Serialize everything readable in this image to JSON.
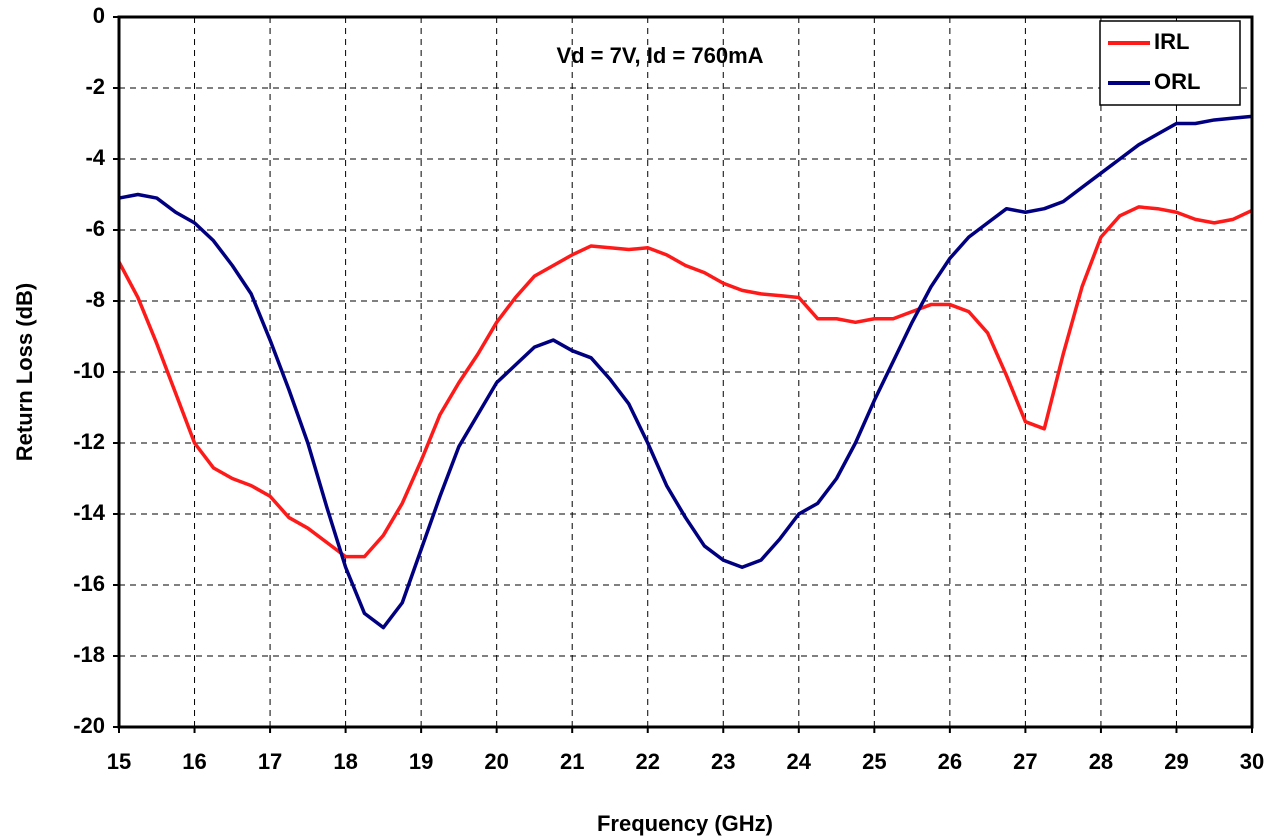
{
  "chart_data": {
    "type": "line",
    "annotation": "Vd = 7V, Id = 760mA",
    "xlabel": "Frequency (GHz)",
    "ylabel": "Return Loss (dB)",
    "x": [
      15,
      15.25,
      15.5,
      15.75,
      16,
      16.25,
      16.5,
      16.75,
      17,
      17.25,
      17.5,
      17.75,
      18,
      18.25,
      18.5,
      18.75,
      19,
      19.25,
      19.5,
      19.75,
      20,
      20.25,
      20.5,
      20.75,
      21,
      21.25,
      21.5,
      21.75,
      22,
      22.25,
      22.5,
      22.75,
      23,
      23.25,
      23.5,
      23.75,
      24,
      24.25,
      24.5,
      24.75,
      25,
      25.25,
      25.5,
      25.75,
      26,
      26.25,
      26.5,
      26.75,
      27,
      27.25,
      27.5,
      27.75,
      28,
      28.25,
      28.5,
      28.75,
      29,
      29.25,
      29.5,
      29.75,
      30
    ],
    "series": [
      {
        "name": "IRL",
        "color": "#ff1a1a",
        "values": [
          -6.9,
          -7.9,
          -9.2,
          -10.6,
          -12.0,
          -12.7,
          -13.0,
          -13.2,
          -13.5,
          -14.1,
          -14.4,
          -14.8,
          -15.2,
          -15.2,
          -14.6,
          -13.7,
          -12.5,
          -11.2,
          -10.3,
          -9.5,
          -8.6,
          -7.9,
          -7.3,
          -7.0,
          -6.7,
          -6.45,
          -6.5,
          -6.55,
          -6.5,
          -6.7,
          -7.0,
          -7.2,
          -7.5,
          -7.7,
          -7.8,
          -7.85,
          -7.9,
          -8.5,
          -8.5,
          -8.6,
          -8.5,
          -8.5,
          -8.3,
          -8.1,
          -8.1,
          -8.3,
          -8.9,
          -10.1,
          -11.4,
          -11.6,
          -9.5,
          -7.6,
          -6.2,
          -5.6,
          -5.35,
          -5.4,
          -5.5,
          -5.7,
          -5.8,
          -5.7,
          -5.45
        ]
      },
      {
        "name": "ORL",
        "color": "#000080",
        "values": [
          -5.1,
          -5.0,
          -5.1,
          -5.5,
          -5.8,
          -6.3,
          -7.0,
          -7.8,
          -9.1,
          -10.5,
          -12.0,
          -13.8,
          -15.5,
          -16.8,
          -17.2,
          -16.5,
          -15.0,
          -13.5,
          -12.1,
          -11.2,
          -10.3,
          -9.8,
          -9.3,
          -9.1,
          -9.4,
          -9.6,
          -10.2,
          -10.9,
          -12.0,
          -13.2,
          -14.1,
          -14.9,
          -15.3,
          -15.5,
          -15.3,
          -14.7,
          -14.0,
          -13.7,
          -13.0,
          -12.0,
          -10.8,
          -9.7,
          -8.6,
          -7.6,
          -6.8,
          -6.2,
          -5.8,
          -5.4,
          -5.5,
          -5.4,
          -5.2,
          -4.8,
          -4.4,
          -4.0,
          -3.6,
          -3.3,
          -3.0,
          -3.0,
          -2.9,
          -2.85,
          -2.8
        ]
      }
    ],
    "xlim": [
      15,
      30
    ],
    "xticks": [
      15,
      16,
      17,
      18,
      19,
      20,
      21,
      22,
      23,
      24,
      25,
      26,
      27,
      28,
      29,
      30
    ],
    "ylim": [
      -20,
      0
    ],
    "yticks": [
      -20,
      -18,
      -16,
      -14,
      -12,
      -10,
      -8,
      -6,
      -4,
      -2,
      0
    ],
    "grid": true,
    "legend": "top-right"
  }
}
